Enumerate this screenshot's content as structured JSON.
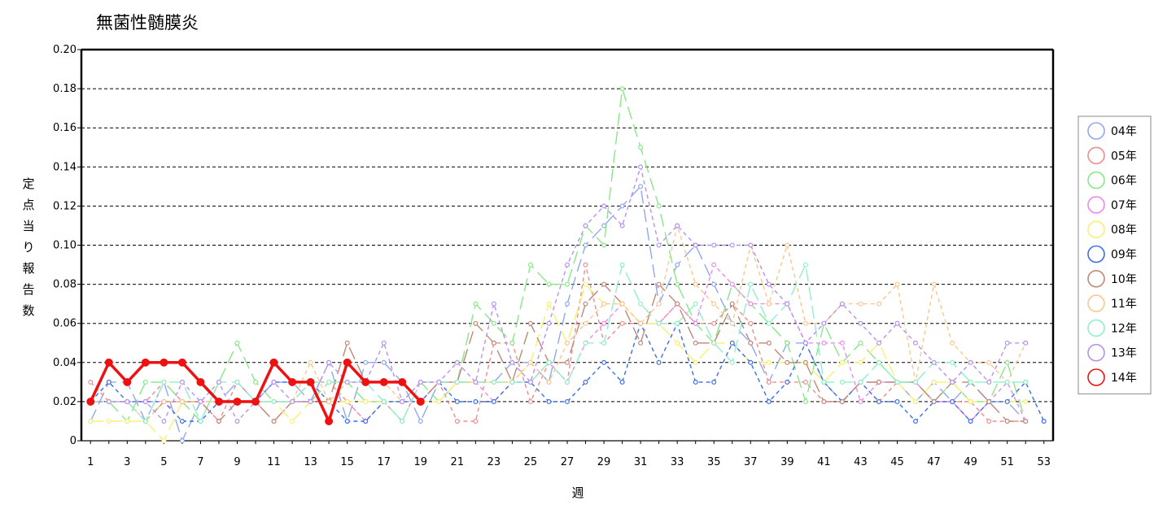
{
  "chart_data": {
    "type": "line",
    "title": "無菌性髄膜炎",
    "xlabel": "週",
    "ylabel": "定点当り報告数",
    "ylim": [
      0,
      0.2
    ],
    "yticks": [
      "0",
      "0.02",
      "0.04",
      "0.06",
      "0.08",
      "0.10",
      "0.12",
      "0.14",
      "0.16",
      "0.18",
      "0.20"
    ],
    "xlim": [
      1,
      53
    ],
    "xticks": [
      1,
      3,
      5,
      7,
      9,
      11,
      13,
      15,
      17,
      19,
      21,
      23,
      25,
      27,
      29,
      31,
      33,
      35,
      37,
      39,
      41,
      43,
      45,
      47,
      49,
      51,
      53
    ],
    "grid": "horizontal dashed",
    "legend_position": "right",
    "series": [
      {
        "name": "04年",
        "color": "#8fa8f0",
        "values": [
          0.01,
          0.03,
          0.03,
          0.01,
          0.03,
          0.0,
          0.02,
          0.02,
          0.03,
          0.02,
          0.03,
          0.03,
          0.02,
          0.04,
          0.01,
          0.04,
          0.04,
          0.03,
          0.01,
          0.03,
          0.03,
          0.03,
          0.03,
          0.04,
          0.04,
          0.03,
          0.07,
          0.1,
          0.11,
          0.12,
          0.13,
          0.07,
          0.09,
          0.1,
          0.08,
          0.06,
          0.05,
          0.03,
          0.05,
          0.05,
          0.03,
          0.02,
          0.03,
          0.03,
          0.03,
          0.02,
          0.03,
          0.02,
          0.03,
          0.02,
          0.02,
          0.01,
          null
        ]
      },
      {
        "name": "05年",
        "color": "#f08c8c",
        "values": [
          0.03,
          0.02,
          0.02,
          0.02,
          0.03,
          0.02,
          0.02,
          0.01,
          0.03,
          0.02,
          0.01,
          0.02,
          0.03,
          0.03,
          0.02,
          0.01,
          0.02,
          0.01,
          0.03,
          0.03,
          0.01,
          0.01,
          0.05,
          0.05,
          0.02,
          0.04,
          0.03,
          0.09,
          0.05,
          0.06,
          0.06,
          0.06,
          0.07,
          0.06,
          0.06,
          0.07,
          0.06,
          0.03,
          0.03,
          0.03,
          0.02,
          0.02,
          0.03,
          0.02,
          0.03,
          0.03,
          0.02,
          0.02,
          0.02,
          0.01,
          0.01,
          0.01,
          null
        ]
      },
      {
        "name": "06年",
        "color": "#88e888",
        "values": [
          0.02,
          0.02,
          0.01,
          0.03,
          0.03,
          0.02,
          0.01,
          0.03,
          0.05,
          0.03,
          0.02,
          0.02,
          0.02,
          0.03,
          0.03,
          0.02,
          0.02,
          0.02,
          0.03,
          0.02,
          0.03,
          0.07,
          0.06,
          0.05,
          0.09,
          0.08,
          0.08,
          0.11,
          0.1,
          0.18,
          0.15,
          0.12,
          0.08,
          0.06,
          0.05,
          0.08,
          0.07,
          0.06,
          0.05,
          0.02,
          0.06,
          0.04,
          0.05,
          0.04,
          0.03,
          0.03,
          0.02,
          0.03,
          0.02,
          0.02,
          0.04,
          0.01,
          null
        ]
      },
      {
        "name": "07年",
        "color": "#ee88ee",
        "values": [
          0.02,
          0.02,
          0.02,
          0.02,
          0.02,
          0.02,
          0.02,
          0.02,
          0.02,
          0.02,
          0.02,
          0.02,
          0.02,
          0.02,
          0.02,
          0.01,
          0.02,
          0.02,
          0.02,
          0.03,
          0.03,
          0.03,
          0.02,
          0.03,
          0.03,
          0.04,
          0.03,
          0.05,
          0.06,
          0.07,
          0.06,
          0.06,
          0.07,
          0.06,
          0.09,
          0.08,
          0.07,
          0.07,
          0.07,
          0.05,
          0.05,
          0.05,
          0.02,
          0.03,
          0.03,
          0.03,
          0.02,
          0.02,
          0.01,
          0.02,
          0.03,
          0.01,
          null
        ]
      },
      {
        "name": "08年",
        "color": "#f8f070",
        "values": [
          0.01,
          0.01,
          0.01,
          0.01,
          0.0,
          0.02,
          0.02,
          0.02,
          0.02,
          0.02,
          0.02,
          0.01,
          0.02,
          0.02,
          0.02,
          0.02,
          0.02,
          0.02,
          0.02,
          0.02,
          0.03,
          0.03,
          0.03,
          0.03,
          0.04,
          0.07,
          0.05,
          0.08,
          0.07,
          0.07,
          0.06,
          0.06,
          0.05,
          0.04,
          0.05,
          0.05,
          0.04,
          0.04,
          0.04,
          0.04,
          0.03,
          0.04,
          0.04,
          0.05,
          0.03,
          0.02,
          0.03,
          0.03,
          0.02,
          0.02,
          0.02,
          0.02,
          null
        ]
      },
      {
        "name": "09年",
        "color": "#3c6ee6",
        "values": [
          0.02,
          0.03,
          0.02,
          0.02,
          0.02,
          0.01,
          0.01,
          0.02,
          0.02,
          0.02,
          0.03,
          0.03,
          0.03,
          0.02,
          0.01,
          0.01,
          0.02,
          0.02,
          0.02,
          0.03,
          0.02,
          0.02,
          0.02,
          0.03,
          0.03,
          0.02,
          0.02,
          0.03,
          0.04,
          0.03,
          0.06,
          0.04,
          0.06,
          0.03,
          0.03,
          0.05,
          0.04,
          0.02,
          0.03,
          0.05,
          0.03,
          0.02,
          0.03,
          0.02,
          0.02,
          0.01,
          0.02,
          0.02,
          0.01,
          0.02,
          0.02,
          0.03,
          0.01
        ]
      },
      {
        "name": "10年",
        "color": "#c08878",
        "values": [
          0.02,
          0.02,
          0.02,
          0.01,
          0.02,
          0.02,
          0.02,
          0.01,
          0.02,
          0.02,
          0.01,
          0.02,
          0.02,
          0.02,
          0.05,
          0.03,
          0.03,
          0.03,
          0.02,
          0.03,
          0.03,
          0.06,
          0.05,
          0.03,
          0.06,
          0.04,
          0.04,
          0.07,
          0.08,
          0.07,
          0.05,
          0.08,
          0.07,
          0.05,
          0.05,
          0.07,
          0.05,
          0.05,
          0.04,
          0.04,
          0.02,
          0.02,
          0.03,
          0.03,
          0.03,
          0.03,
          0.02,
          0.03,
          0.03,
          0.02,
          0.01,
          0.01,
          null
        ]
      },
      {
        "name": "11年",
        "color": "#f8c890",
        "values": [
          0.02,
          0.02,
          0.02,
          0.01,
          0.02,
          0.02,
          0.02,
          0.02,
          0.02,
          0.02,
          0.02,
          0.02,
          0.04,
          0.02,
          0.03,
          0.03,
          0.03,
          0.02,
          0.03,
          0.03,
          0.03,
          0.03,
          0.03,
          0.03,
          0.04,
          0.03,
          0.05,
          0.06,
          0.07,
          0.07,
          0.06,
          0.07,
          0.11,
          0.08,
          0.07,
          0.06,
          0.1,
          0.07,
          0.1,
          0.06,
          0.06,
          0.07,
          0.07,
          0.07,
          0.08,
          0.03,
          0.08,
          0.05,
          0.04,
          0.04,
          0.03,
          0.05,
          null
        ]
      },
      {
        "name": "12年",
        "color": "#90f0c8",
        "values": [
          0.02,
          0.02,
          0.02,
          0.01,
          0.03,
          0.03,
          0.01,
          0.03,
          0.03,
          0.02,
          0.02,
          0.02,
          0.03,
          0.03,
          0.03,
          0.03,
          0.02,
          0.01,
          0.03,
          0.03,
          0.03,
          0.03,
          0.03,
          0.03,
          0.03,
          0.04,
          0.03,
          0.05,
          0.05,
          0.09,
          0.07,
          0.06,
          0.06,
          0.07,
          0.05,
          0.04,
          0.08,
          0.06,
          0.07,
          0.09,
          0.03,
          0.03,
          0.03,
          0.04,
          0.03,
          0.03,
          0.04,
          0.04,
          0.03,
          0.03,
          0.03,
          0.03,
          null
        ]
      },
      {
        "name": "13年",
        "color": "#b890f0",
        "values": [
          0.02,
          0.02,
          0.02,
          0.02,
          0.01,
          0.03,
          0.02,
          0.03,
          0.01,
          0.02,
          0.03,
          0.02,
          0.02,
          0.04,
          0.03,
          0.03,
          0.05,
          0.02,
          0.03,
          0.03,
          0.04,
          0.03,
          0.07,
          0.04,
          0.03,
          0.06,
          0.09,
          0.11,
          0.12,
          0.11,
          0.14,
          0.1,
          0.11,
          0.1,
          0.1,
          0.1,
          0.1,
          0.08,
          0.07,
          0.05,
          0.06,
          0.07,
          0.06,
          0.05,
          0.06,
          0.05,
          0.04,
          0.03,
          0.04,
          0.03,
          0.05,
          0.05,
          null
        ]
      },
      {
        "name": "14年",
        "color": "#ee1111",
        "values": [
          0.02,
          0.04,
          0.03,
          0.04,
          0.04,
          0.04,
          0.03,
          0.02,
          0.02,
          0.02,
          0.04,
          0.03,
          0.03,
          0.01,
          0.04,
          0.03,
          0.03,
          0.03,
          0.02,
          null,
          null,
          null,
          null,
          null,
          null,
          null,
          null,
          null,
          null,
          null,
          null,
          null,
          null,
          null,
          null,
          null,
          null,
          null,
          null,
          null,
          null,
          null,
          null,
          null,
          null,
          null,
          null,
          null,
          null,
          null,
          null,
          null,
          null
        ]
      }
    ]
  }
}
